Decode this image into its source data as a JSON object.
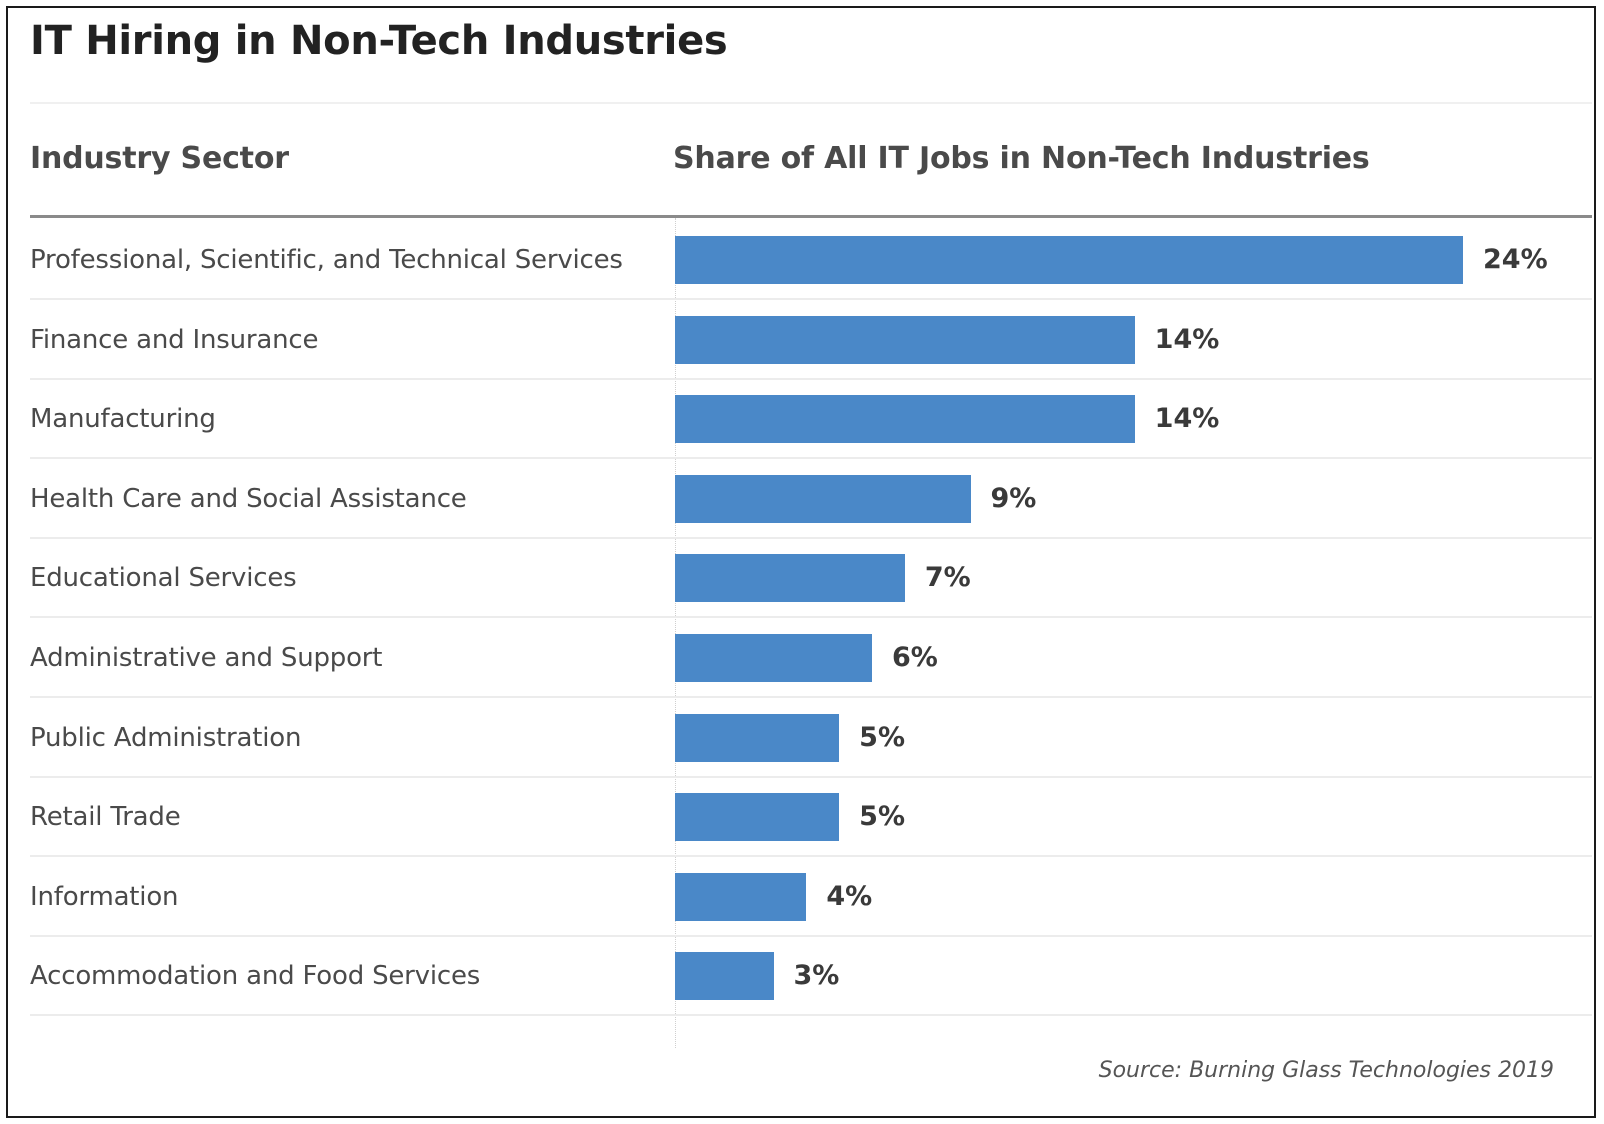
{
  "title": "IT Hiring in Non-Tech Industries",
  "columns": {
    "sector": "Industry Sector",
    "share": "Share of All IT Jobs in Non-Tech Industries"
  },
  "source": "Source: Burning Glass Technologies 2019",
  "colors": {
    "bar": "#4a88c8",
    "frame": "#1a1a1a"
  },
  "chart_data": {
    "type": "bar",
    "orientation": "horizontal",
    "title": "IT Hiring in Non-Tech Industries",
    "categories": [
      "Professional, Scientific, and Technical Services",
      "Finance and Insurance",
      "Manufacturing",
      "Health Care and Social Assistance",
      "Educational Services",
      "Administrative and Support",
      "Public Administration",
      "Retail Trade",
      "Information",
      "Accommodation and Food Services"
    ],
    "values": [
      24,
      14,
      14,
      9,
      7,
      6,
      5,
      5,
      4,
      3
    ],
    "value_labels": [
      "24%",
      "14%",
      "14%",
      "9%",
      "7%",
      "6%",
      "5%",
      "5%",
      "4%",
      "3%"
    ],
    "xlabel": "Share of All IT Jobs in Non-Tech Industries",
    "ylabel": "Industry Sector",
    "xlim": [
      0,
      24
    ],
    "grid": false,
    "legend": "none"
  }
}
